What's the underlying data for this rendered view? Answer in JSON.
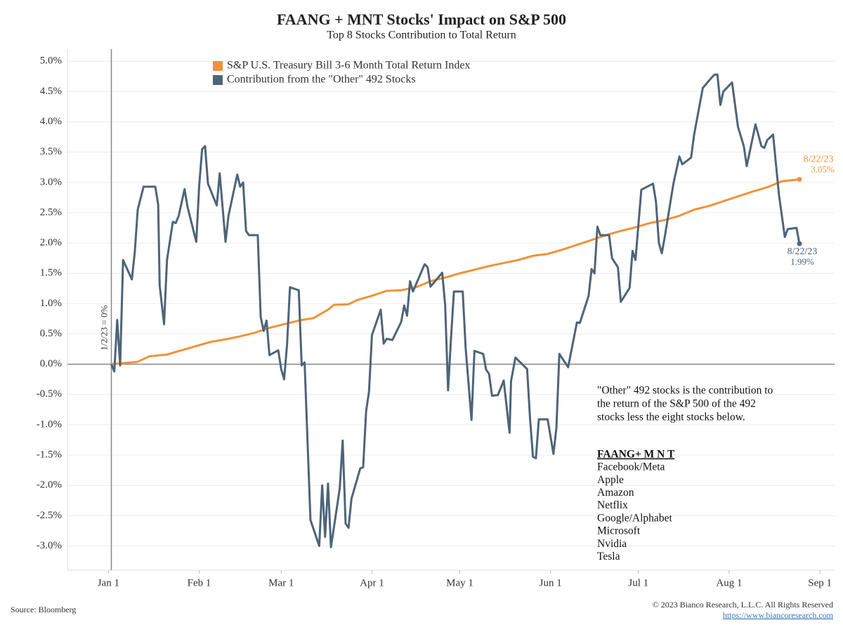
{
  "chart_data": {
    "type": "line",
    "title": "FAANG + MNT Stocks' Impact on S&P 500",
    "subtitle": "Top 8 Stocks Contribution to Total Return",
    "xlim": [
      -14,
      248
    ],
    "xticks": [
      {
        "value": 0,
        "label": "Jan 1"
      },
      {
        "value": 31,
        "label": "Feb 1"
      },
      {
        "value": 59,
        "label": "Mar 1"
      },
      {
        "value": 90,
        "label": "Apr 1"
      },
      {
        "value": 120,
        "label": "May 1"
      },
      {
        "value": 151,
        "label": "Jun 1"
      },
      {
        "value": 181,
        "label": "Jul 1"
      },
      {
        "value": 212,
        "label": "Aug 1"
      },
      {
        "value": 243,
        "label": "Sep 1"
      }
    ],
    "ylim": [
      -3.4,
      5.2
    ],
    "yticks": [
      {
        "value": -3,
        "label": "-3.0%"
      },
      {
        "value": -2.5,
        "label": "-2.5%"
      },
      {
        "value": -2,
        "label": "-2.0%"
      },
      {
        "value": -1.5,
        "label": "-1.5%"
      },
      {
        "value": -1,
        "label": "-1.0%"
      },
      {
        "value": -0.5,
        "label": "-0.5%"
      },
      {
        "value": 0,
        "label": "0.0%"
      },
      {
        "value": 0.5,
        "label": "0.5%"
      },
      {
        "value": 1,
        "label": "1.0%"
      },
      {
        "value": 1.5,
        "label": "1.5%"
      },
      {
        "value": 2,
        "label": "2.0%"
      },
      {
        "value": 2.5,
        "label": "2.5%"
      },
      {
        "value": 3,
        "label": "3.0%"
      },
      {
        "value": 3.5,
        "label": "3.5%"
      },
      {
        "value": 4,
        "label": "4.0%"
      },
      {
        "value": 4.5,
        "label": "4.5%"
      },
      {
        "value": 5,
        "label": "5.0%"
      }
    ],
    "grid": true,
    "legend": "top-left",
    "reference_line": {
      "x": 1,
      "label": "1/2/23 = 0%"
    },
    "series": [
      {
        "name": "S&P U.S. Treasury Bill 3-6 Month Total Return Index",
        "color": "#f0923a",
        "x": [
          1,
          10,
          14,
          20,
          25,
          30,
          35,
          40,
          45,
          50,
          55,
          60,
          65,
          70,
          75,
          77,
          82,
          85,
          90,
          95,
          100,
          105,
          110,
          115,
          120,
          125,
          130,
          135,
          140,
          145,
          150,
          155,
          160,
          165,
          170,
          175,
          180,
          185,
          190,
          195,
          200,
          205,
          210,
          215,
          220,
          225,
          230,
          236
        ],
        "values": [
          0,
          0.04,
          0.13,
          0.16,
          0.23,
          0.3,
          0.37,
          0.41,
          0.46,
          0.52,
          0.6,
          0.66,
          0.72,
          0.76,
          0.9,
          0.98,
          0.99,
          1.06,
          1.13,
          1.21,
          1.22,
          1.27,
          1.37,
          1.43,
          1.5,
          1.56,
          1.62,
          1.67,
          1.72,
          1.79,
          1.82,
          1.89,
          1.97,
          2.05,
          2.13,
          2.2,
          2.26,
          2.33,
          2.38,
          2.45,
          2.55,
          2.61,
          2.69,
          2.77,
          2.85,
          2.92,
          3.02,
          3.05
        ],
        "end_date": "8/22/23",
        "end_value_label": "3.05%"
      },
      {
        "name": "Contribution from the \"Other\" 492 Stocks",
        "color": "#4e6479",
        "x": [
          1,
          2,
          3,
          4,
          5,
          8,
          9,
          10,
          12,
          16,
          17,
          17.5,
          19,
          20,
          22,
          23,
          24,
          26,
          27,
          30,
          31,
          32,
          33,
          34,
          37,
          38,
          40,
          41,
          44,
          45,
          46,
          47,
          48,
          51,
          52,
          53,
          54,
          55,
          58,
          59,
          60,
          61,
          62,
          65,
          66,
          67,
          69,
          72,
          73,
          74,
          75,
          76,
          79,
          80,
          81,
          82,
          83,
          86,
          87,
          88,
          89,
          90,
          93,
          94,
          95,
          97,
          100,
          101,
          102,
          103,
          104,
          108,
          109,
          110,
          114,
          115,
          116,
          117,
          118,
          121,
          122,
          124,
          125,
          128,
          129,
          130,
          131,
          133,
          135,
          137,
          137.5,
          139,
          143,
          144,
          145,
          146,
          147,
          150,
          152,
          153,
          154,
          157,
          160,
          161,
          164,
          165,
          166,
          167,
          168,
          171,
          172,
          174,
          175,
          178,
          179,
          180,
          182,
          186,
          187,
          188,
          189,
          190,
          193,
          195,
          196,
          199,
          200,
          203,
          206,
          207,
          208,
          209,
          210,
          213,
          215,
          217,
          218,
          221,
          223,
          224,
          225,
          227,
          229,
          231,
          232,
          235,
          236
        ],
        "values": [
          0,
          -0.12,
          0.73,
          -0.02,
          1.72,
          1.4,
          1.85,
          2.55,
          2.93,
          2.93,
          2.63,
          1.3,
          0.66,
          1.72,
          2.35,
          2.33,
          2.45,
          2.89,
          2.6,
          2.02,
          2.95,
          3.55,
          3.6,
          2.98,
          2.62,
          3.15,
          2.02,
          2.45,
          3.13,
          2.93,
          3.0,
          2.2,
          2.13,
          2.13,
          0.78,
          0.55,
          0.72,
          0.15,
          0.23,
          -0.08,
          -0.25,
          0.32,
          1.27,
          1.22,
          -0.02,
          0.03,
          -2.57,
          -3.0,
          -2.0,
          -2.85,
          -1.97,
          -3.02,
          -2.05,
          -1.26,
          -2.63,
          -2.7,
          -2.22,
          -1.72,
          -1.7,
          -0.78,
          -0.45,
          0.48,
          0.9,
          0.34,
          0.42,
          0.4,
          0.7,
          0.97,
          0.8,
          1.37,
          1.2,
          1.65,
          1.6,
          1.28,
          1.51,
          0.98,
          -0.43,
          0.43,
          1.2,
          1.2,
          0.27,
          -0.92,
          0.22,
          0.17,
          -0.09,
          -0.16,
          -0.52,
          -0.51,
          -0.27,
          -1.13,
          -0.28,
          0.11,
          -0.08,
          -0.9,
          -1.53,
          -1.55,
          -0.91,
          -0.91,
          -1.48,
          -1.05,
          0.17,
          -0.05,
          0.69,
          0.68,
          1.13,
          1.57,
          1.5,
          2.27,
          2.13,
          2.13,
          1.75,
          1.6,
          1.03,
          1.26,
          1.87,
          1.72,
          2.88,
          2.98,
          2.68,
          2.0,
          1.83,
          2.1,
          2.99,
          3.43,
          3.3,
          3.41,
          3.78,
          4.56,
          4.73,
          4.78,
          4.78,
          4.28,
          4.5,
          4.65,
          3.92,
          3.6,
          3.27,
          3.96,
          3.6,
          3.57,
          3.7,
          3.79,
          2.8,
          2.1,
          2.23,
          2.25,
          1.99
        ],
        "end_date": "8/22/23",
        "end_value_label": "1.99%"
      }
    ],
    "note": [
      "\"Other\" 492 stocks is the contribution to",
      "the return of the S&P 500 of the 492",
      "stocks less the eight stocks below."
    ],
    "faang_title": "FAANG+ M N T",
    "faang_list": [
      "Facebook/Meta",
      "Apple",
      "Amazon",
      "Netflix",
      "Google/Alphabet",
      "Microsoft",
      "Nvidia",
      "Tesla"
    ],
    "source": "Source: Bloomberg",
    "copyright": "© 2023 Bianco Research, L.L.C. All Rights Reserved",
    "link": "https://www.biancoresearch.com"
  }
}
